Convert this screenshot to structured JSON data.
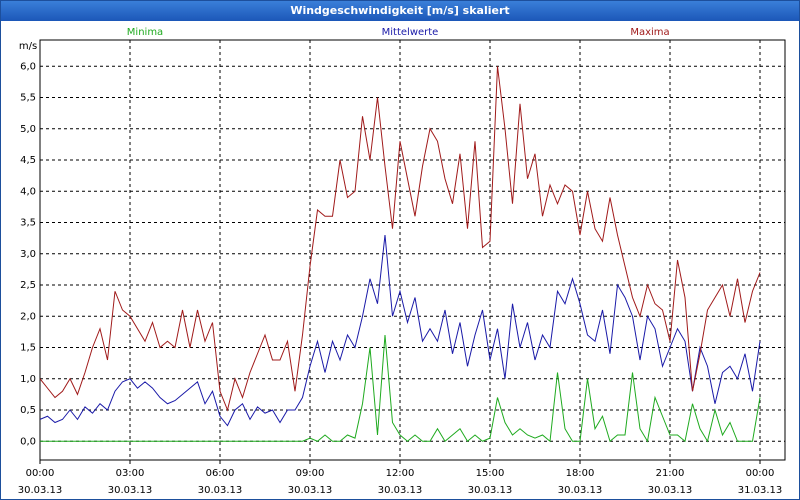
{
  "chart_data": {
    "type": "line",
    "title": "Windgeschwindigkeit [m/s] skaliert",
    "y_label": "m/s",
    "x": [
      0,
      15,
      30,
      45,
      60,
      75,
      90,
      105,
      120,
      135,
      150,
      165,
      180,
      195,
      210,
      225,
      240,
      255,
      270,
      285,
      300,
      315,
      330,
      345,
      360,
      375,
      390,
      405,
      420,
      435,
      450,
      465,
      480,
      495,
      510,
      525,
      540,
      555,
      570,
      585,
      600,
      615,
      630,
      645,
      660,
      675,
      690,
      705,
      720,
      735,
      750,
      765,
      780,
      795,
      810,
      825,
      840,
      855,
      870,
      885,
      900,
      915,
      930,
      945,
      960,
      975,
      990,
      1005,
      1020,
      1035,
      1050,
      1065,
      1080,
      1095,
      1110,
      1125,
      1140,
      1155,
      1170,
      1185,
      1200,
      1215,
      1230,
      1245,
      1260,
      1275,
      1290,
      1305,
      1320,
      1335,
      1350,
      1365,
      1380,
      1395,
      1410,
      1425,
      1440
    ],
    "xlim": [
      0,
      1490
    ],
    "xticks": [
      {
        "value": 0,
        "label": "00:00\n30.03.13"
      },
      {
        "value": 180,
        "label": "03:00\n30.03.13"
      },
      {
        "value": 360,
        "label": "06:00\n30.03.13"
      },
      {
        "value": 540,
        "label": "09:00\n30.03.13"
      },
      {
        "value": 720,
        "label": "12:00\n30.03.13"
      },
      {
        "value": 900,
        "label": "15:00\n30.03.13"
      },
      {
        "value": 1080,
        "label": "18:00\n30.03.13"
      },
      {
        "value": 1260,
        "label": "21:00\n30.03.13"
      },
      {
        "value": 1440,
        "label": "00:00\n31.03.13"
      }
    ],
    "ylim": [
      -0.3,
      6.42
    ],
    "yticks": [
      {
        "value": 0,
        "label": "0,0"
      },
      {
        "value": 0.5,
        "label": "0,5"
      },
      {
        "value": 1,
        "label": "1,0"
      },
      {
        "value": 1.5,
        "label": "1,5"
      },
      {
        "value": 2,
        "label": "2,0"
      },
      {
        "value": 2.5,
        "label": "2,5"
      },
      {
        "value": 3,
        "label": "3,0"
      },
      {
        "value": 3.5,
        "label": "3,5"
      },
      {
        "value": 4,
        "label": "4,0"
      },
      {
        "value": 4.5,
        "label": "4,5"
      },
      {
        "value": 5,
        "label": "5,0"
      },
      {
        "value": 5.5,
        "label": "5,5"
      },
      {
        "value": 6,
        "label": "6,0"
      }
    ],
    "grid": true,
    "series": [
      {
        "name": "Minima",
        "color": "#1faa1f",
        "values": [
          0,
          0,
          0,
          0,
          0,
          0,
          0,
          0,
          0,
          0,
          0,
          0,
          0,
          0,
          0,
          0,
          0,
          0,
          0,
          0,
          0,
          0,
          0,
          0,
          0,
          0,
          0,
          0,
          0,
          0,
          0,
          0,
          0,
          0,
          0,
          0,
          0.05,
          0,
          0.1,
          0,
          0,
          0.1,
          0.05,
          0.6,
          1.5,
          0.1,
          1.7,
          0.3,
          0.1,
          0,
          0.1,
          0,
          0,
          0.2,
          0,
          0.1,
          0.2,
          0,
          0.1,
          0,
          0.05,
          0.7,
          0.3,
          0.1,
          0.2,
          0.1,
          0.05,
          0.1,
          0,
          1.1,
          0.2,
          0,
          0,
          1.0,
          0.2,
          0.4,
          0,
          0.1,
          0.1,
          1.1,
          0.2,
          0,
          0.7,
          0.4,
          0.1,
          0.1,
          0,
          0.6,
          0.2,
          0,
          0.5,
          0.1,
          0.3,
          0,
          0,
          0,
          0.7
        ]
      },
      {
        "name": "Mittelwerte",
        "color": "#1a1aa8",
        "values": [
          0.35,
          0.4,
          0.3,
          0.35,
          0.5,
          0.35,
          0.55,
          0.45,
          0.6,
          0.5,
          0.8,
          0.95,
          1.0,
          0.85,
          0.95,
          0.85,
          0.7,
          0.6,
          0.65,
          0.75,
          0.85,
          0.95,
          0.6,
          0.8,
          0.4,
          0.25,
          0.5,
          0.6,
          0.35,
          0.55,
          0.45,
          0.5,
          0.3,
          0.5,
          0.5,
          0.7,
          1.2,
          1.6,
          1.1,
          1.6,
          1.3,
          1.7,
          1.5,
          2.0,
          2.6,
          2.2,
          3.3,
          2.0,
          2.4,
          1.9,
          2.3,
          1.6,
          1.8,
          1.6,
          2.1,
          1.4,
          1.9,
          1.2,
          1.7,
          2.1,
          1.3,
          1.8,
          1.0,
          2.2,
          1.5,
          1.9,
          1.3,
          1.7,
          1.5,
          2.4,
          2.2,
          2.6,
          2.2,
          1.7,
          1.6,
          2.1,
          1.4,
          2.5,
          2.3,
          2.0,
          1.3,
          2.0,
          1.8,
          1.2,
          1.5,
          1.8,
          1.6,
          0.8,
          1.5,
          1.2,
          0.6,
          1.1,
          1.2,
          1.0,
          1.4,
          0.8,
          1.6
        ]
      },
      {
        "name": "Maxima",
        "color": "#a01a1a",
        "values": [
          1.0,
          0.85,
          0.7,
          0.8,
          1.0,
          0.75,
          1.1,
          1.5,
          1.8,
          1.3,
          2.4,
          2.1,
          2.0,
          1.8,
          1.6,
          1.9,
          1.5,
          1.6,
          1.5,
          2.1,
          1.5,
          2.1,
          1.6,
          1.9,
          0.8,
          0.5,
          1.0,
          0.7,
          1.1,
          1.4,
          1.7,
          1.3,
          1.3,
          1.6,
          0.8,
          1.7,
          2.8,
          3.7,
          3.6,
          3.6,
          4.5,
          3.9,
          4.0,
          5.2,
          4.5,
          5.5,
          4.4,
          3.4,
          4.8,
          4.2,
          3.6,
          4.4,
          5.0,
          4.8,
          4.2,
          3.8,
          4.6,
          3.4,
          4.8,
          3.1,
          3.2,
          6.0,
          5.0,
          3.8,
          5.4,
          4.2,
          4.6,
          3.6,
          4.1,
          3.8,
          4.1,
          4.0,
          3.3,
          4.0,
          3.4,
          3.2,
          3.9,
          3.3,
          2.8,
          2.3,
          2.0,
          2.5,
          2.2,
          2.1,
          1.6,
          2.9,
          2.3,
          0.8,
          1.4,
          2.1,
          2.3,
          2.5,
          2.0,
          2.6,
          1.9,
          2.4,
          2.7
        ]
      }
    ]
  }
}
